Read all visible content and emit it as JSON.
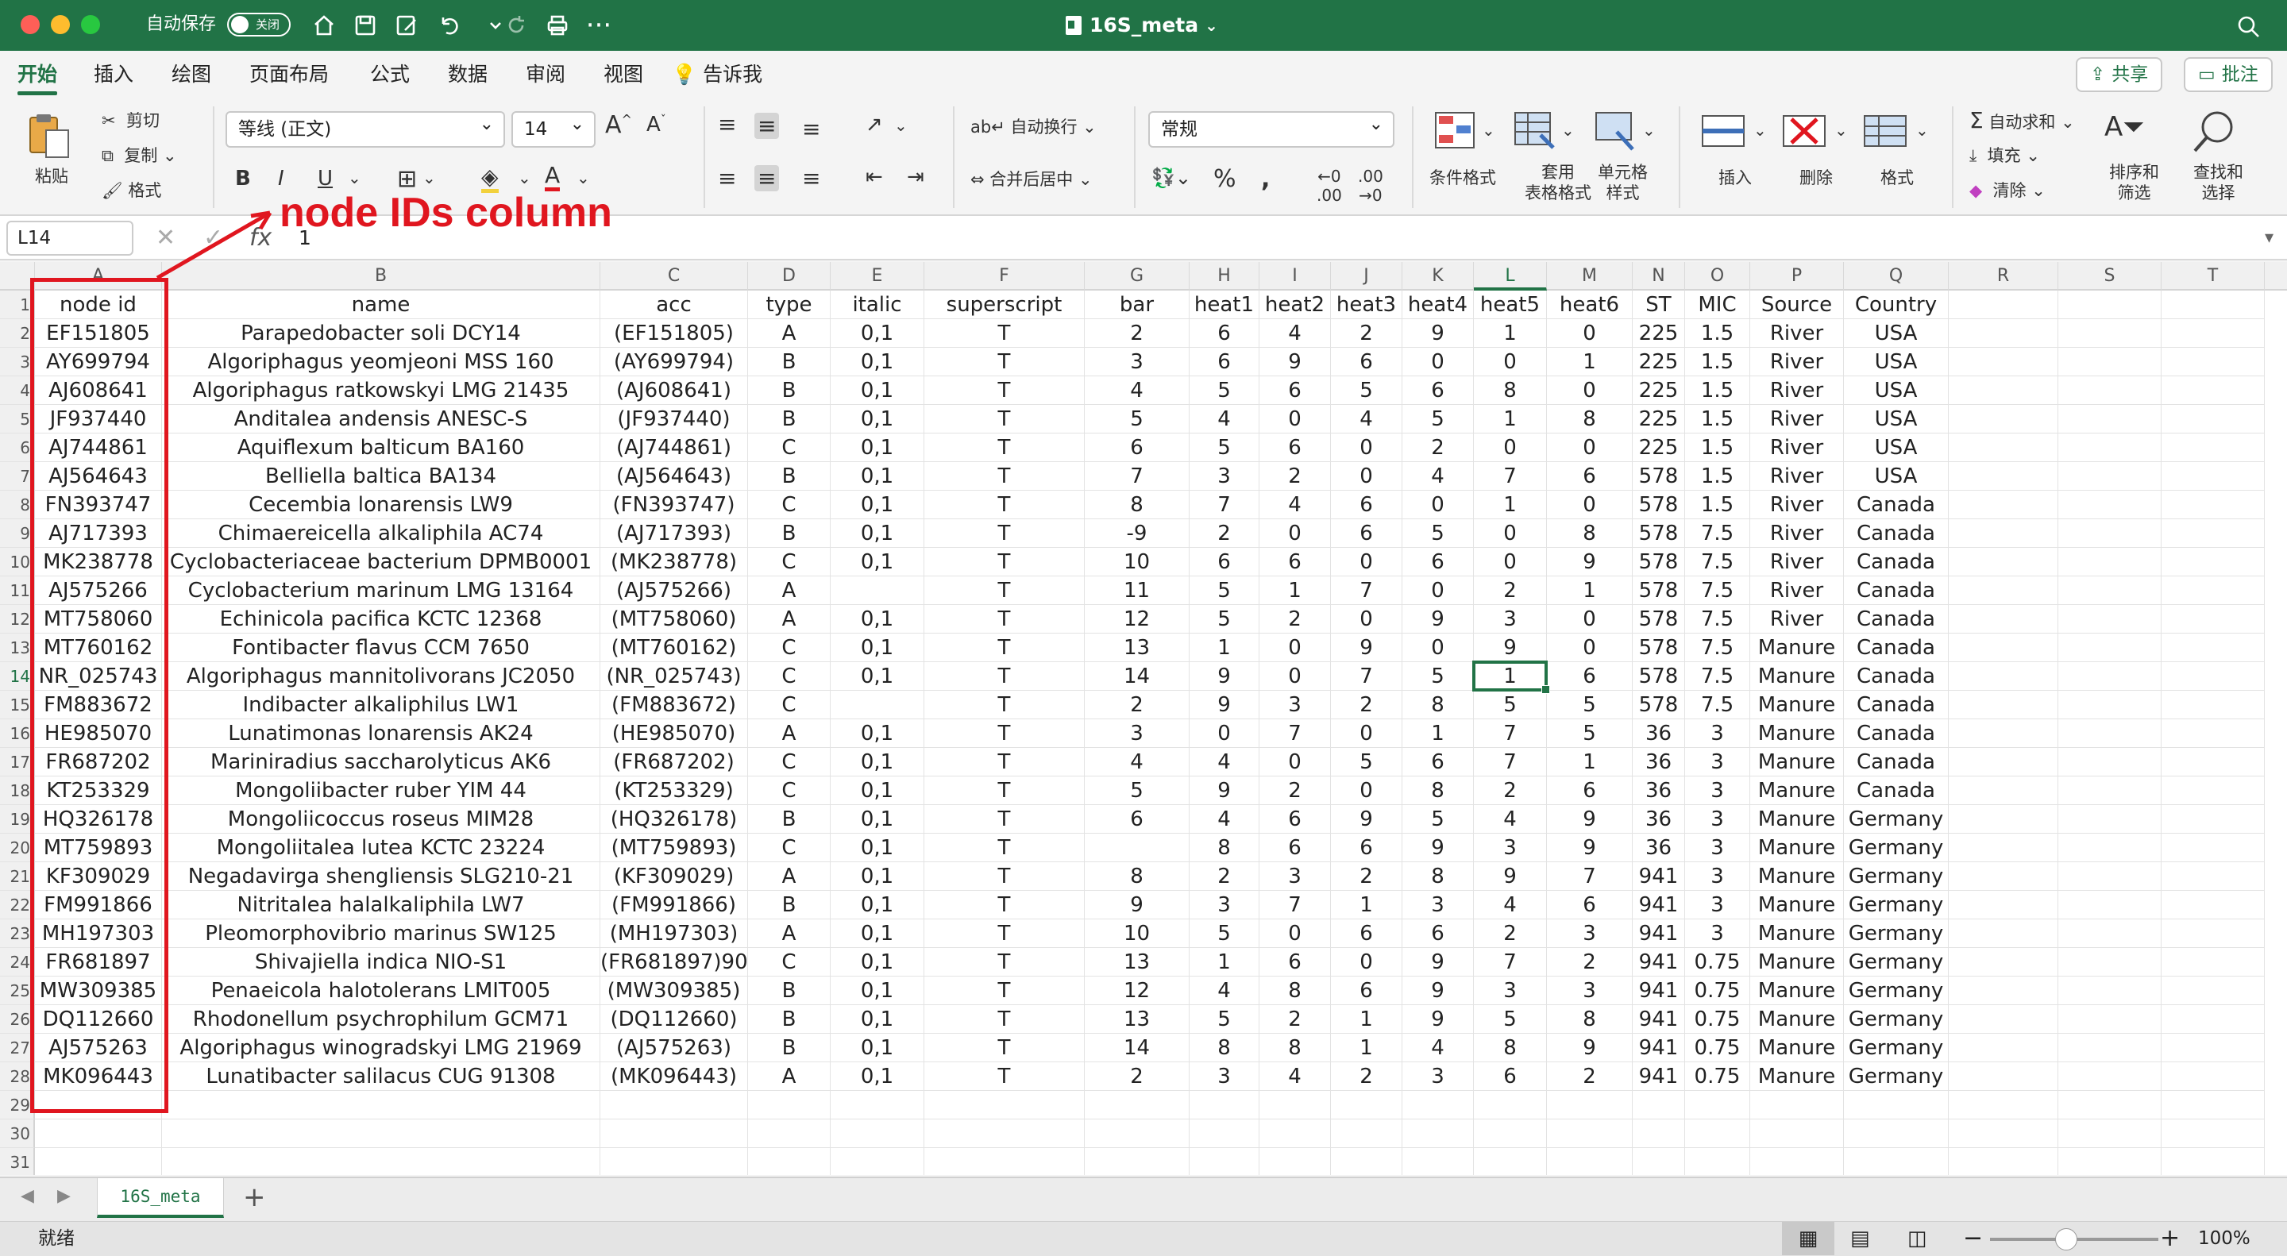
{
  "window": {
    "autosave_label": "自动保存",
    "autosave_state": "关闭",
    "doc_title": "16S_meta"
  },
  "ribbon_tabs": [
    "开始",
    "插入",
    "绘图",
    "页面布局",
    "公式",
    "数据",
    "审阅",
    "视图",
    "告诉我"
  ],
  "buttons": {
    "share": "共享",
    "comment": "批注"
  },
  "ribbon": {
    "paste": "粘贴",
    "cut": "剪切",
    "copy": "复制",
    "format_painter": "格式",
    "font_name": "等线 (正文)",
    "font_size": "14",
    "wrap_text": "自动换行",
    "merge_center": "合并后居中",
    "number_format": "常规",
    "conditional_format": "条件格式",
    "table_format_l1": "套用",
    "table_format_l2": "表格格式",
    "cell_style_l1": "单元格",
    "cell_style_l2": "样式",
    "insert": "插入",
    "delete": "删除",
    "format": "格式",
    "autosum": "自动求和",
    "fill": "填充",
    "clear": "清除",
    "sort_l1": "排序和",
    "sort_l2": "筛选",
    "find_l1": "查找和",
    "find_l2": "选择"
  },
  "formula_bar": {
    "cell_ref": "L14",
    "value": "1"
  },
  "grid": {
    "columns": [
      "A",
      "B",
      "C",
      "D",
      "E",
      "F",
      "G",
      "H",
      "I",
      "J",
      "K",
      "L",
      "M",
      "N",
      "O",
      "P",
      "Q",
      "R",
      "S",
      "T"
    ],
    "selected_column": "L",
    "selected_row": 14,
    "row_numbers": [
      1,
      2,
      3,
      4,
      5,
      6,
      7,
      8,
      9,
      10,
      11,
      12,
      13,
      14,
      15,
      16,
      17,
      18,
      19,
      20,
      21,
      22,
      23,
      24,
      25,
      26,
      27,
      28,
      29,
      30,
      31
    ],
    "rows": [
      [
        "node id",
        "name",
        "acc",
        "type",
        "italic",
        "superscript",
        "bar",
        "heat1",
        "heat2",
        "heat3",
        "heat4",
        "heat5",
        "heat6",
        "ST",
        "MIC",
        "Source",
        "Country"
      ],
      [
        "EF151805",
        "Parapedobacter soli DCY14",
        "(EF151805)",
        "A",
        "0,1",
        "T",
        "2",
        "6",
        "4",
        "2",
        "9",
        "1",
        "0",
        "225",
        "1.5",
        "River",
        "USA"
      ],
      [
        "AY699794",
        "Algoriphagus yeomjeoni MSS 160",
        "(AY699794)",
        "B",
        "0,1",
        "T",
        "3",
        "6",
        "9",
        "6",
        "0",
        "0",
        "1",
        "225",
        "1.5",
        "River",
        "USA"
      ],
      [
        "AJ608641",
        "Algoriphagus ratkowskyi LMG 21435",
        "(AJ608641)",
        "B",
        "0,1",
        "T",
        "4",
        "5",
        "6",
        "5",
        "6",
        "8",
        "0",
        "225",
        "1.5",
        "River",
        "USA"
      ],
      [
        "JF937440",
        "Anditalea andensis ANESC-S",
        "(JF937440)",
        "B",
        "0,1",
        "T",
        "5",
        "4",
        "0",
        "4",
        "5",
        "1",
        "8",
        "225",
        "1.5",
        "River",
        "USA"
      ],
      [
        "AJ744861",
        "Aquiflexum balticum BA160",
        "(AJ744861)",
        "C",
        "0,1",
        "T",
        "6",
        "5",
        "6",
        "0",
        "2",
        "0",
        "0",
        "225",
        "1.5",
        "River",
        "USA"
      ],
      [
        "AJ564643",
        "Belliella baltica BA134",
        "(AJ564643)",
        "B",
        "0,1",
        "T",
        "7",
        "3",
        "2",
        "0",
        "4",
        "7",
        "6",
        "578",
        "1.5",
        "River",
        "USA"
      ],
      [
        "FN393747",
        "Cecembia lonarensis LW9",
        "(FN393747)",
        "C",
        "0,1",
        "T",
        "8",
        "7",
        "4",
        "6",
        "0",
        "1",
        "0",
        "578",
        "1.5",
        "River",
        "Canada"
      ],
      [
        "AJ717393",
        "Chimaereicella alkaliphila AC74",
        "(AJ717393)",
        "B",
        "0,1",
        "T",
        "-9",
        "2",
        "0",
        "6",
        "5",
        "0",
        "8",
        "578",
        "7.5",
        "River",
        "Canada"
      ],
      [
        "MK238778",
        "Cyclobacteriaceae bacterium DPMB0001",
        "(MK238778)",
        "C",
        "0,1",
        "T",
        "10",
        "6",
        "6",
        "0",
        "6",
        "0",
        "9",
        "578",
        "7.5",
        "River",
        "Canada"
      ],
      [
        "AJ575266",
        "Cyclobacterium marinum LMG 13164",
        "(AJ575266)",
        "A",
        "",
        "T",
        "11",
        "5",
        "1",
        "7",
        "0",
        "2",
        "1",
        "578",
        "7.5",
        "River",
        "Canada"
      ],
      [
        "MT758060",
        "Echinicola pacifica KCTC 12368",
        "(MT758060)",
        "A",
        "0,1",
        "T",
        "12",
        "5",
        "2",
        "0",
        "9",
        "3",
        "0",
        "578",
        "7.5",
        "River",
        "Canada"
      ],
      [
        "MT760162",
        "Fontibacter flavus CCM 7650",
        "(MT760162)",
        "C",
        "0,1",
        "T",
        "13",
        "1",
        "0",
        "9",
        "0",
        "9",
        "0",
        "578",
        "7.5",
        "Manure",
        "Canada"
      ],
      [
        "NR_025743",
        "Algoriphagus mannitolivorans JC2050",
        "(NR_025743)",
        "C",
        "0,1",
        "T",
        "14",
        "9",
        "0",
        "7",
        "5",
        "1",
        "6",
        "578",
        "7.5",
        "Manure",
        "Canada"
      ],
      [
        "FM883672",
        "Indibacter alkaliphilus LW1",
        "(FM883672)",
        "C",
        "",
        "T",
        "2",
        "9",
        "3",
        "2",
        "8",
        "5",
        "5",
        "578",
        "7.5",
        "Manure",
        "Canada"
      ],
      [
        "HE985070",
        "Lunatimonas lonarensis AK24",
        "(HE985070)",
        "A",
        "0,1",
        "T",
        "3",
        "0",
        "7",
        "0",
        "1",
        "7",
        "5",
        "36",
        "3",
        "Manure",
        "Canada"
      ],
      [
        "FR687202",
        "Mariniradius saccharolyticus AK6",
        "(FR687202)",
        "C",
        "0,1",
        "T",
        "4",
        "4",
        "0",
        "5",
        "6",
        "7",
        "1",
        "36",
        "3",
        "Manure",
        "Canada"
      ],
      [
        "KT253329",
        "Mongoliibacter ruber YIM 44",
        "(KT253329)",
        "C",
        "0,1",
        "T",
        "5",
        "9",
        "2",
        "0",
        "8",
        "2",
        "6",
        "36",
        "3",
        "Manure",
        "Canada"
      ],
      [
        "HQ326178",
        "Mongoliicoccus roseus MIM28",
        "(HQ326178)",
        "B",
        "0,1",
        "T",
        "6",
        "4",
        "6",
        "9",
        "5",
        "4",
        "9",
        "36",
        "3",
        "Manure",
        "Germany"
      ],
      [
        "MT759893",
        "Mongoliitalea lutea KCTC 23224",
        "(MT759893)",
        "C",
        "0,1",
        "T",
        "",
        "8",
        "6",
        "6",
        "9",
        "3",
        "9",
        "36",
        "3",
        "Manure",
        "Germany"
      ],
      [
        "KF309029",
        "Negadavirga shengliensis SLG210-21",
        "(KF309029)",
        "A",
        "0,1",
        "T",
        "8",
        "2",
        "3",
        "2",
        "8",
        "9",
        "7",
        "941",
        "3",
        "Manure",
        "Germany"
      ],
      [
        "FM991866",
        "Nitritalea halalkaliphila LW7",
        "(FM991866)",
        "B",
        "0,1",
        "T",
        "9",
        "3",
        "7",
        "1",
        "3",
        "4",
        "6",
        "941",
        "3",
        "Manure",
        "Germany"
      ],
      [
        "MH197303",
        "Pleomorphovibrio marinus SW125",
        "(MH197303)",
        "A",
        "0,1",
        "T",
        "10",
        "5",
        "0",
        "6",
        "6",
        "2",
        "3",
        "941",
        "3",
        "Manure",
        "Germany"
      ],
      [
        "FR681897",
        "Shivajiella indica NIO-S1",
        "(FR681897)90",
        "C",
        "0,1",
        "T",
        "13",
        "1",
        "6",
        "0",
        "9",
        "7",
        "2",
        "941",
        "0.75",
        "Manure",
        "Germany"
      ],
      [
        "MW309385",
        "Penaeicola halotolerans LMIT005",
        "(MW309385)",
        "B",
        "0,1",
        "T",
        "12",
        "4",
        "8",
        "6",
        "9",
        "3",
        "3",
        "941",
        "0.75",
        "Manure",
        "Germany"
      ],
      [
        "DQ112660",
        "Rhodonellum psychrophilum GCM71",
        "(DQ112660)",
        "B",
        "0,1",
        "T",
        "13",
        "5",
        "2",
        "1",
        "9",
        "5",
        "8",
        "941",
        "0.75",
        "Manure",
        "Germany"
      ],
      [
        "AJ575263",
        "Algoriphagus winogradskyi LMG 21969",
        "(AJ575263)",
        "B",
        "0,1",
        "T",
        "14",
        "8",
        "8",
        "1",
        "4",
        "8",
        "9",
        "941",
        "0.75",
        "Manure",
        "Germany"
      ],
      [
        "MK096443",
        "Lunatibacter salilacus CUG 91308",
        "(MK096443)",
        "A",
        "0,1",
        "T",
        "2",
        "3",
        "4",
        "2",
        "3",
        "6",
        "2",
        "941",
        "0.75",
        "Manure",
        "Germany"
      ]
    ]
  },
  "annotation": {
    "label": "node IDs column",
    "color": "#e0161f"
  },
  "sheet_tabs": [
    "16S_meta"
  ],
  "status": {
    "ready": "就绪",
    "zoom": "100%"
  },
  "colors": {
    "accent": "#217346",
    "annotation": "#e0161f"
  }
}
